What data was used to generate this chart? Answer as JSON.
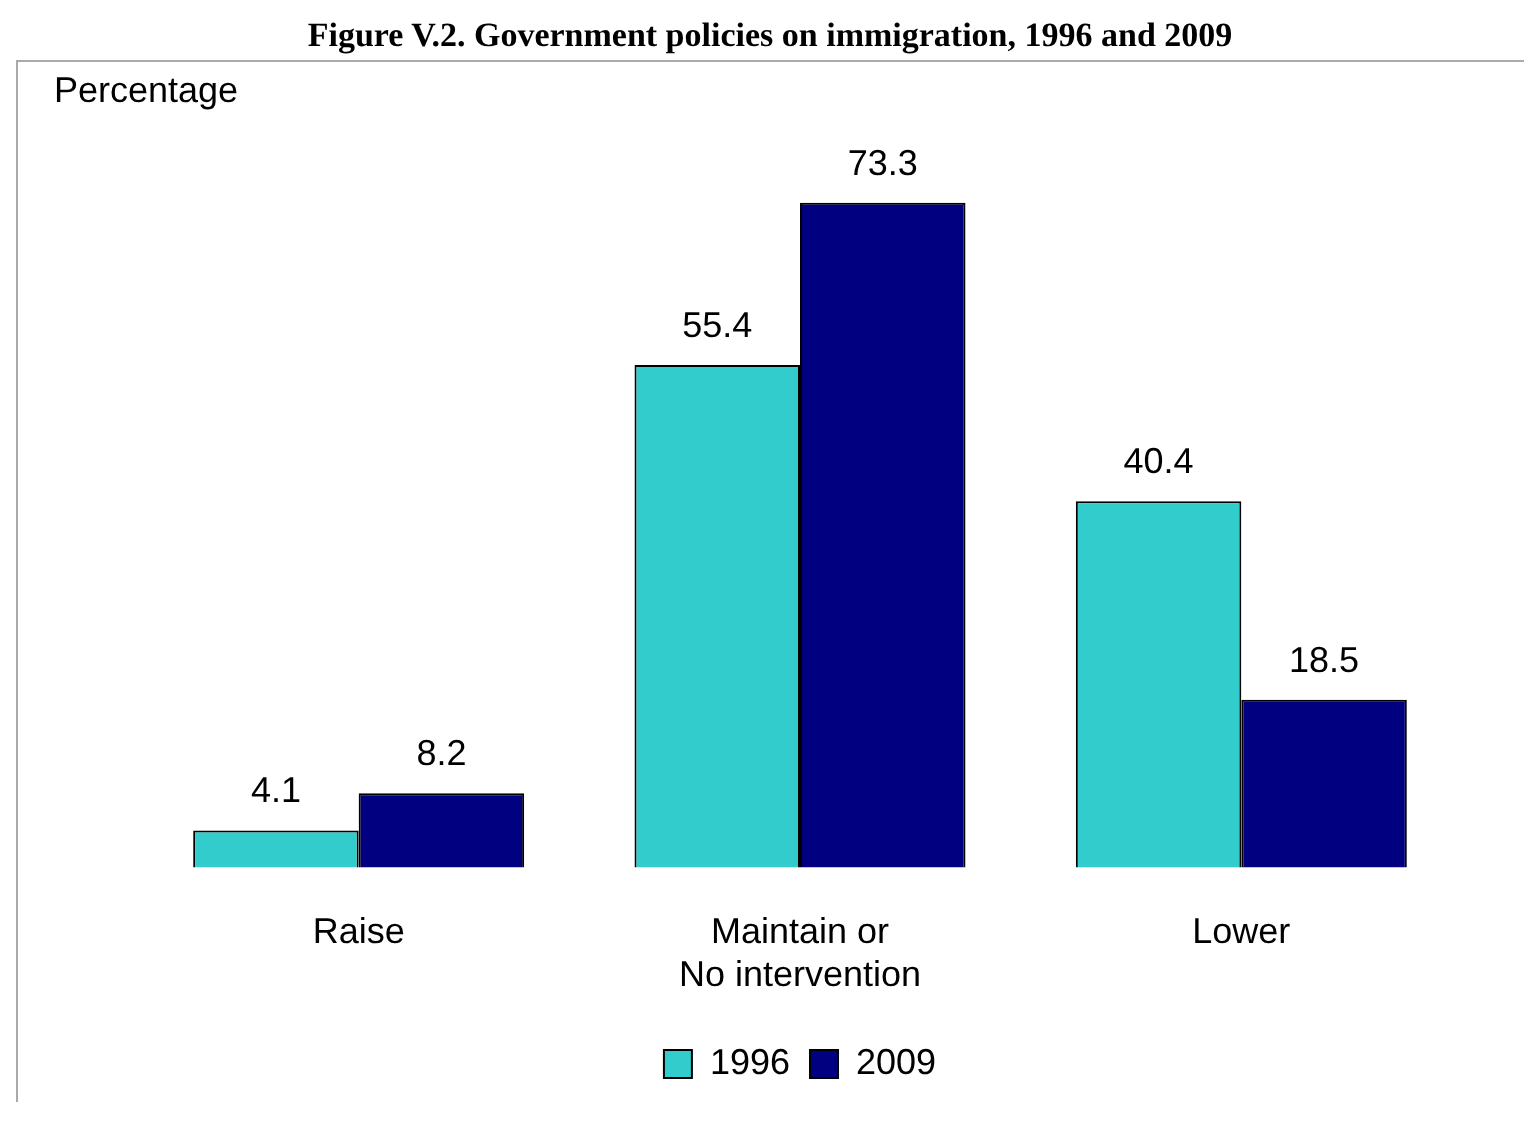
{
  "chart_data": {
    "type": "bar",
    "title": "Figure V.2.  Government policies on immigration, 1996 and 2009",
    "ylabel": "Percentage",
    "categories": [
      "Raise",
      "Maintain or\nNo intervention",
      "Lower"
    ],
    "series": [
      {
        "name": "1996",
        "color": "#33cccc",
        "values": [
          4.1,
          55.4,
          40.4
        ]
      },
      {
        "name": "2009",
        "color": "#000080",
        "values": [
          8.2,
          73.3,
          18.5
        ]
      }
    ],
    "data_labels": true,
    "grid": false,
    "legend": "bottom"
  }
}
